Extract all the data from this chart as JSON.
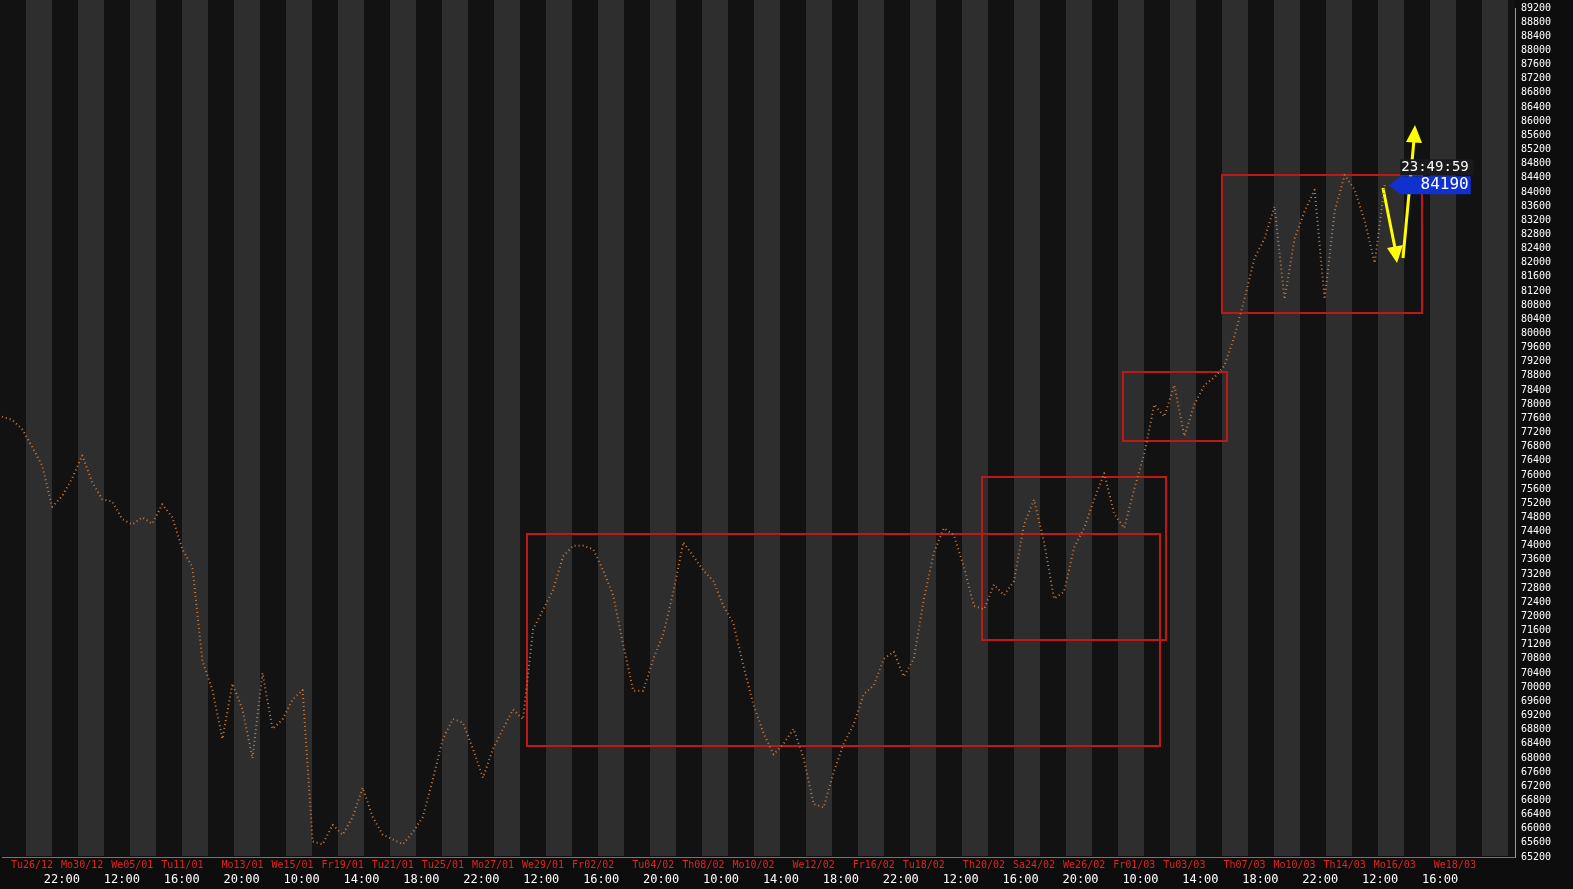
{
  "chart_data": {
    "type": "line",
    "legend": false,
    "grid": false,
    "marker": "none",
    "line_style": "dotted",
    "categories": [
      null,
      null,
      null,
      "Tu26/12",
      null,
      null,
      null,
      null,
      "Mo30/12",
      null,
      null,
      null,
      null,
      "We05/01",
      null,
      null,
      null,
      null,
      "Tu11/01",
      null,
      null,
      null,
      null,
      null,
      "Mo13/01",
      null,
      null,
      null,
      null,
      "We15/01",
      null,
      null,
      null,
      null,
      "Fr19/01",
      null,
      null,
      null,
      null,
      "Tu21/01",
      null,
      null,
      null,
      null,
      "Tu25/01",
      null,
      null,
      null,
      null,
      "Mo27/01",
      null,
      null,
      null,
      null,
      "We29/01",
      null,
      null,
      null,
      null,
      "Fr02/02",
      null,
      null,
      null,
      null,
      null,
      "Tu04/02",
      null,
      null,
      null,
      null,
      "Th08/02",
      null,
      null,
      null,
      null,
      "Mo10/02",
      null,
      null,
      null,
      null,
      null,
      "We12/02",
      null,
      null,
      null,
      null,
      null,
      "Fr16/02",
      null,
      null,
      null,
      null,
      "Tu18/02",
      null,
      null,
      null,
      null,
      null,
      "Th20/02",
      null,
      null,
      null,
      null,
      "Sa24/02",
      null,
      null,
      null,
      null,
      "We26/02",
      null,
      null,
      null,
      null,
      "Fr01/03",
      null,
      null,
      null,
      null,
      "Tu03/03",
      null,
      null,
      null,
      null,
      null,
      "Th07/03",
      null,
      null,
      null,
      null,
      "Mo10/03",
      null,
      null,
      null,
      null,
      "Th14/03",
      null,
      null,
      null,
      null,
      "Mo16/03",
      null,
      null,
      null,
      null,
      null,
      "We18/03",
      null,
      null,
      null,
      null,
      null,
      null
    ],
    "ylim": [
      65200,
      89200
    ],
    "yticks": [
      65200,
      65600,
      66000,
      66400,
      66800,
      67200,
      67600,
      68000,
      68400,
      68800,
      69200,
      69600,
      70000,
      70400,
      70800,
      71200,
      71600,
      72000,
      72400,
      72800,
      73200,
      73600,
      74000,
      74400,
      74800,
      75200,
      75600,
      76000,
      76400,
      76800,
      77200,
      77600,
      78000,
      78400,
      78800,
      79200,
      79600,
      80000,
      80400,
      80800,
      81200,
      81600,
      82000,
      82400,
      82800,
      83200,
      83600,
      84000,
      84400,
      84800,
      85200,
      85600,
      86000,
      86400,
      86800,
      87200,
      87600,
      88000,
      88400,
      88800,
      89200
    ],
    "annotations": [
      "23:49:59",
      "84190",
      "22:00",
      "12:00",
      "16:00",
      "20:00",
      "10:00",
      "14:00",
      "18:00",
      "22:00",
      "12:00",
      "16:00",
      "20:00",
      "10:00",
      "14:00",
      "18:00",
      "22:00",
      "12:00",
      "16:00",
      "20:00",
      "10:00",
      "14:00",
      "18:00",
      "22:00",
      "12:00",
      "16:00"
    ],
    "series": [
      {
        "color": "#c8783a",
        "values": [
          77650,
          77560,
          77300,
          76800,
          76270,
          75100,
          75400,
          75900,
          76550,
          75800,
          75310,
          75250,
          74750,
          74600,
          74800,
          74620,
          75170,
          74800,
          73900,
          73400,
          70750,
          69920,
          68540,
          70100,
          69370,
          67990,
          70400,
          68820,
          69090,
          69650,
          69920,
          65640,
          65560,
          66110,
          65830,
          66330,
          67160,
          66330,
          65830,
          65700,
          65560,
          65900,
          66330,
          67400,
          68540,
          69100,
          69000,
          68260,
          67440,
          68260,
          68820,
          69370,
          69090,
          71630,
          72190,
          72750,
          73700,
          74000,
          74000,
          73900,
          73300,
          72600,
          71200,
          69900,
          69900,
          70800,
          71500,
          72700,
          74100,
          73700,
          73300,
          73000,
          72300,
          71800,
          70600,
          69500,
          68700,
          68100,
          68400,
          68820,
          68000,
          66700,
          66600,
          67600,
          68400,
          68950,
          69800,
          70050,
          70800,
          71000,
          70300,
          70800,
          72500,
          73800,
          74500,
          74300,
          73400,
          72300,
          72200,
          72900,
          72600,
          73000,
          74600,
          75300,
          74100,
          72500,
          72700,
          73950,
          74500,
          75300,
          76050,
          74900,
          74500,
          75600,
          76600,
          77990,
          77650,
          78540,
          77100,
          77990,
          78540,
          78760,
          79090,
          79920,
          80970,
          82130,
          82680,
          83590,
          80970,
          82680,
          83450,
          84060,
          80970,
          83450,
          84480,
          84060,
          83180,
          81990,
          84190,
          null,
          null,
          null,
          null,
          null,
          null,
          null,
          null,
          null,
          null,
          null,
          null,
          null
        ]
      }
    ]
  }
}
